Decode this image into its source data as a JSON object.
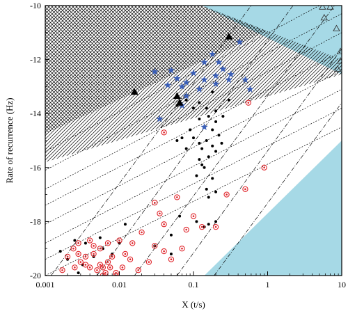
{
  "chart_data": {
    "type": "scatter",
    "title": "",
    "xlabel": "X (t/s)",
    "ylabel": "Rate of recurrence (Hz)",
    "xscale": "log",
    "xlim": [
      0.001,
      10
    ],
    "ylim": [
      -20,
      -10
    ],
    "x_ticks": [
      0.001,
      0.01,
      0.1,
      1,
      10
    ],
    "x_tick_labels": [
      "0.001",
      "0.01",
      "0.1",
      "1",
      "10"
    ],
    "y_ticks": [
      -20,
      -18,
      -16,
      -14,
      -12,
      -10
    ],
    "y_tick_labels": [
      "-20",
      "-18",
      "-16",
      "-14",
      "-12",
      "-10"
    ],
    "grid": false,
    "legend": "none",
    "colors": {
      "region_fill": "#a6d9e6",
      "filled_circle": "#000000",
      "ring_marker": "#e0242a",
      "star_marker": "#3a5fb8",
      "filled_triangle": "#000000",
      "open_triangle": "#333333",
      "reference_line": "#000000"
    },
    "regions": [
      {
        "name": "upper-right shaded region",
        "pattern": "solid",
        "boundary": [
          [
            0.13,
            -10
          ],
          [
            10,
            -10
          ],
          [
            10,
            -12.55
          ]
        ]
      },
      {
        "name": "lower-right shaded region",
        "pattern": "solid",
        "boundary": [
          [
            0.14,
            -20
          ],
          [
            10,
            -20
          ],
          [
            10,
            -15.0
          ]
        ]
      },
      {
        "name": "crosshatched region",
        "pattern": "crosshatch",
        "boundary": [
          [
            0.001,
            -10
          ],
          [
            0.13,
            -10
          ],
          [
            1.0,
            -10.95
          ],
          [
            0.001,
            -14.75
          ]
        ]
      },
      {
        "name": "diagonal-hatched region",
        "pattern": "diagonal",
        "boundary": [
          [
            0.001,
            -14.75
          ],
          [
            1.0,
            -10.95
          ],
          [
            10,
            -12.0
          ],
          [
            10,
            -12.55
          ],
          [
            0.001,
            -15.8
          ]
        ]
      }
    ],
    "reference_lines": {
      "steep_dashdot": [
        [
          [
            0.0012,
            -20
          ],
          [
            0.6,
            -10
          ]
        ],
        [
          [
            0.005,
            -20
          ],
          [
            2.2,
            -10
          ]
        ],
        [
          [
            0.016,
            -20
          ],
          [
            8.0,
            -10
          ]
        ],
        [
          [
            0.06,
            -20
          ],
          [
            10,
            -11.6
          ]
        ],
        [
          [
            0.19,
            -20
          ],
          [
            10,
            -13.6
          ]
        ]
      ],
      "shallow_dotted": [
        [
          [
            0.001,
            -20
          ],
          [
            10,
            -14.5
          ]
        ],
        [
          [
            0.001,
            -19.4
          ],
          [
            10,
            -13.8
          ]
        ],
        [
          [
            0.001,
            -18.8
          ],
          [
            10,
            -13.1
          ]
        ],
        [
          [
            0.001,
            -18.1
          ],
          [
            10,
            -12.4
          ]
        ],
        [
          [
            0.001,
            -17.4
          ],
          [
            10,
            -11.7
          ]
        ],
        [
          [
            0.001,
            -16.8
          ],
          [
            10,
            -11.0
          ]
        ],
        [
          [
            0.001,
            -16.1
          ],
          [
            10,
            -10.3
          ]
        ],
        [
          [
            0.001,
            -15.4
          ],
          [
            5.0,
            -10.0
          ]
        ]
      ]
    },
    "series": [
      {
        "marker": "filled-circle",
        "points": [
          [
            0.06,
            -13.7
          ],
          [
            0.08,
            -13.5
          ],
          [
            0.1,
            -13.8
          ],
          [
            0.12,
            -13.6
          ],
          [
            0.15,
            -13.8
          ],
          [
            0.18,
            -13.2
          ],
          [
            0.2,
            -13.9
          ],
          [
            0.25,
            -14.1
          ],
          [
            0.3,
            -13.5
          ],
          [
            0.12,
            -14.2
          ],
          [
            0.14,
            -14.5
          ],
          [
            0.16,
            -14.1
          ],
          [
            0.18,
            -14.6
          ],
          [
            0.2,
            -14.3
          ],
          [
            0.22,
            -14.8
          ],
          [
            0.1,
            -14.9
          ],
          [
            0.12,
            -15.1
          ],
          [
            0.13,
            -15.3
          ],
          [
            0.15,
            -15.0
          ],
          [
            0.16,
            -15.6
          ],
          [
            0.18,
            -15.2
          ],
          [
            0.2,
            -15.4
          ],
          [
            0.12,
            -15.7
          ],
          [
            0.08,
            -15.3
          ],
          [
            0.07,
            -14.9
          ],
          [
            0.06,
            -15.0
          ],
          [
            0.09,
            -14.6
          ],
          [
            0.24,
            -15.1
          ],
          [
            0.13,
            -15.9
          ],
          [
            0.11,
            -16.3
          ],
          [
            0.15,
            -16.8
          ],
          [
            0.18,
            -16.4
          ],
          [
            0.16,
            -17.1
          ],
          [
            0.2,
            -16.9
          ],
          [
            0.14,
            -16.0
          ],
          [
            0.065,
            -17.8
          ],
          [
            0.11,
            -18.0
          ],
          [
            0.16,
            -18.1
          ],
          [
            0.14,
            -18.2
          ],
          [
            0.2,
            -18.0
          ],
          [
            0.012,
            -18.1
          ],
          [
            0.05,
            -18.5
          ],
          [
            0.01,
            -18.8
          ],
          [
            0.008,
            -19.2
          ],
          [
            0.006,
            -19.0
          ],
          [
            0.0045,
            -19.3
          ],
          [
            0.0032,
            -19.6
          ],
          [
            0.0028,
            -19.9
          ],
          [
            0.002,
            -19.4
          ],
          [
            0.0016,
            -19.1
          ],
          [
            0.0035,
            -18.8
          ],
          [
            0.0025,
            -18.7
          ],
          [
            0.0055,
            -18.6
          ],
          [
            0.05,
            -19.2
          ],
          [
            0.03,
            -18.9
          ]
        ]
      },
      {
        "marker": "ring",
        "points": [
          [
            0.55,
            -13.6
          ],
          [
            0.04,
            -14.7
          ],
          [
            0.03,
            -17.3
          ],
          [
            0.035,
            -17.7
          ],
          [
            0.02,
            -18.4
          ],
          [
            0.06,
            -17.1
          ],
          [
            0.08,
            -18.3
          ],
          [
            0.1,
            -17.8
          ],
          [
            0.13,
            -18.2
          ],
          [
            0.2,
            -18.2
          ],
          [
            0.5,
            -16.8
          ],
          [
            0.9,
            -16.0
          ],
          [
            0.28,
            -17.0
          ],
          [
            0.04,
            -18.1
          ],
          [
            0.015,
            -18.8
          ],
          [
            0.012,
            -19.2
          ],
          [
            0.008,
            -19.3
          ],
          [
            0.01,
            -18.7
          ],
          [
            0.007,
            -19.5
          ],
          [
            0.006,
            -19.7
          ],
          [
            0.005,
            -19.8
          ],
          [
            0.004,
            -19.7
          ],
          [
            0.0035,
            -19.6
          ],
          [
            0.003,
            -19.5
          ],
          [
            0.0028,
            -19.2
          ],
          [
            0.0024,
            -19.0
          ],
          [
            0.002,
            -19.3
          ],
          [
            0.0017,
            -19.8
          ],
          [
            0.0035,
            -19.3
          ],
          [
            0.0045,
            -19.2
          ],
          [
            0.0055,
            -19.6
          ],
          [
            0.0065,
            -19.9
          ],
          [
            0.0075,
            -19.7
          ],
          [
            0.009,
            -19.9
          ],
          [
            0.011,
            -19.7
          ],
          [
            0.014,
            -19.4
          ],
          [
            0.018,
            -19.8
          ],
          [
            0.03,
            -18.9
          ],
          [
            0.04,
            -19.1
          ],
          [
            0.05,
            -19.4
          ],
          [
            0.07,
            -19.0
          ],
          [
            0.025,
            -19.5
          ],
          [
            0.0045,
            -18.9
          ],
          [
            0.0055,
            -19.0
          ],
          [
            0.007,
            -18.8
          ],
          [
            0.006,
            -20.0
          ],
          [
            0.009,
            -20.0
          ],
          [
            0.0025,
            -19.7
          ],
          [
            0.0028,
            -18.8
          ],
          [
            0.004,
            -18.7
          ]
        ]
      },
      {
        "marker": "star",
        "points": [
          [
            0.42,
            -11.35
          ],
          [
            0.18,
            -11.8
          ],
          [
            0.22,
            -12.1
          ],
          [
            0.14,
            -12.1
          ],
          [
            0.25,
            -12.35
          ],
          [
            0.32,
            -12.55
          ],
          [
            0.3,
            -12.75
          ],
          [
            0.2,
            -12.6
          ],
          [
            0.14,
            -12.75
          ],
          [
            0.1,
            -12.5
          ],
          [
            0.08,
            -12.85
          ],
          [
            0.06,
            -12.7
          ],
          [
            0.05,
            -12.4
          ],
          [
            0.045,
            -12.95
          ],
          [
            0.07,
            -13.0
          ],
          [
            0.12,
            -13.1
          ],
          [
            0.03,
            -12.45
          ],
          [
            0.08,
            -13.35
          ],
          [
            0.5,
            -12.75
          ],
          [
            0.58,
            -13.1
          ],
          [
            0.2,
            -12.9
          ],
          [
            0.035,
            -14.2
          ],
          [
            0.14,
            -14.5
          ],
          [
            0.07,
            -13.7
          ]
        ]
      },
      {
        "marker": "filled-triangle",
        "points": [
          [
            0.016,
            -13.2
          ],
          [
            0.06,
            -13.35
          ],
          [
            0.3,
            -11.15
          ],
          [
            0.065,
            -13.6
          ]
        ]
      },
      {
        "marker": "open-triangle",
        "points": [
          [
            5.5,
            -10.05
          ],
          [
            7.0,
            -10.05
          ],
          [
            5.8,
            -10.45
          ],
          [
            8.5,
            -10.85
          ],
          [
            9.6,
            -11.7
          ],
          [
            9.6,
            -12.05
          ],
          [
            8.8,
            -12.35
          ]
        ]
      }
    ]
  }
}
